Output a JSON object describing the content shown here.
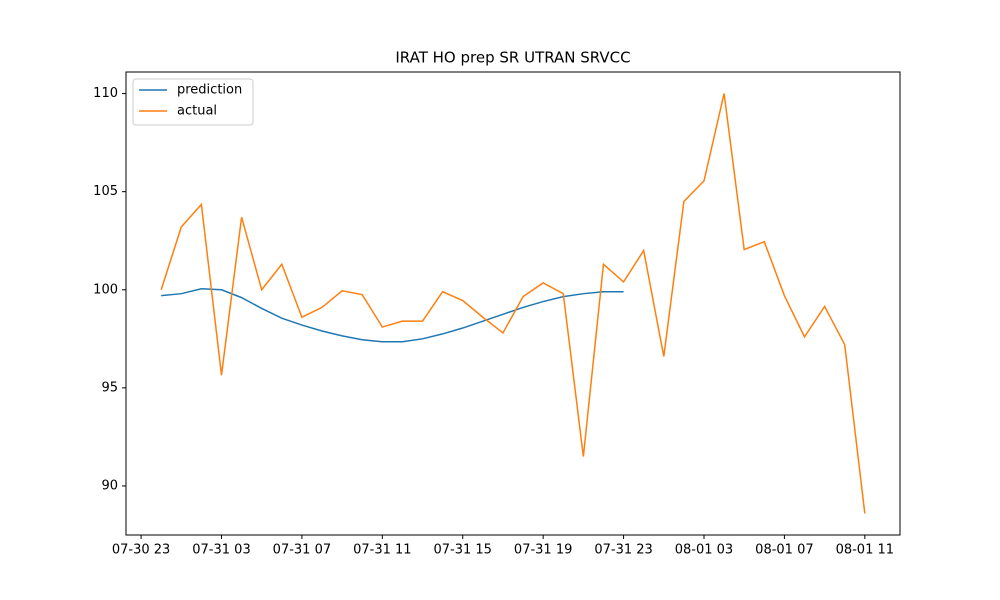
{
  "chart_data": {
    "type": "line",
    "title": "IRAT HO prep SR UTRAN SRVCC",
    "x": [
      "07-31 00",
      "07-31 01",
      "07-31 02",
      "07-31 03",
      "07-31 04",
      "07-31 05",
      "07-31 06",
      "07-31 07",
      "07-31 08",
      "07-31 09",
      "07-31 10",
      "07-31 11",
      "07-31 12",
      "07-31 13",
      "07-31 14",
      "07-31 15",
      "07-31 16",
      "07-31 17",
      "07-31 18",
      "07-31 19",
      "07-31 20",
      "07-31 21",
      "07-31 22",
      "07-31 23",
      "08-01 00",
      "08-01 01",
      "08-01 02",
      "08-01 03",
      "08-01 04",
      "08-01 05",
      "08-01 06",
      "08-01 07",
      "08-01 08",
      "08-01 09",
      "08-01 10",
      "08-01 11"
    ],
    "series": [
      {
        "name": "prediction",
        "color": "#1f77b4",
        "values": [
          99.7,
          99.8,
          100.05,
          100.0,
          99.6,
          99.05,
          98.55,
          98.2,
          97.9,
          97.65,
          97.45,
          97.35,
          97.35,
          97.5,
          97.75,
          98.05,
          98.4,
          98.75,
          99.1,
          99.4,
          99.65,
          99.8,
          99.9,
          99.9,
          null,
          null,
          null,
          null,
          null,
          null,
          null,
          null,
          null,
          null,
          null,
          null
        ]
      },
      {
        "name": "actual",
        "color": "#ff7f0e",
        "values": [
          100.0,
          103.2,
          104.35,
          95.65,
          103.7,
          100.0,
          101.3,
          98.6,
          99.1,
          99.95,
          99.75,
          98.1,
          98.4,
          98.4,
          99.9,
          99.45,
          98.6,
          97.8,
          99.65,
          100.35,
          99.8,
          91.5,
          101.3,
          100.4,
          102.0,
          96.6,
          104.5,
          105.55,
          110.0,
          102.05,
          102.45,
          99.7,
          97.6,
          99.15,
          97.2,
          88.6
        ]
      }
    ],
    "xticks": [
      "07-30 23",
      "07-31 03",
      "07-31 07",
      "07-31 11",
      "07-31 15",
      "07-31 19",
      "07-31 23",
      "08-01 03",
      "08-01 07",
      "08-01 11"
    ],
    "ylim": [
      87.5,
      111.1
    ],
    "yticks": [
      90,
      95,
      100,
      105,
      110
    ],
    "legend": "upper left"
  }
}
